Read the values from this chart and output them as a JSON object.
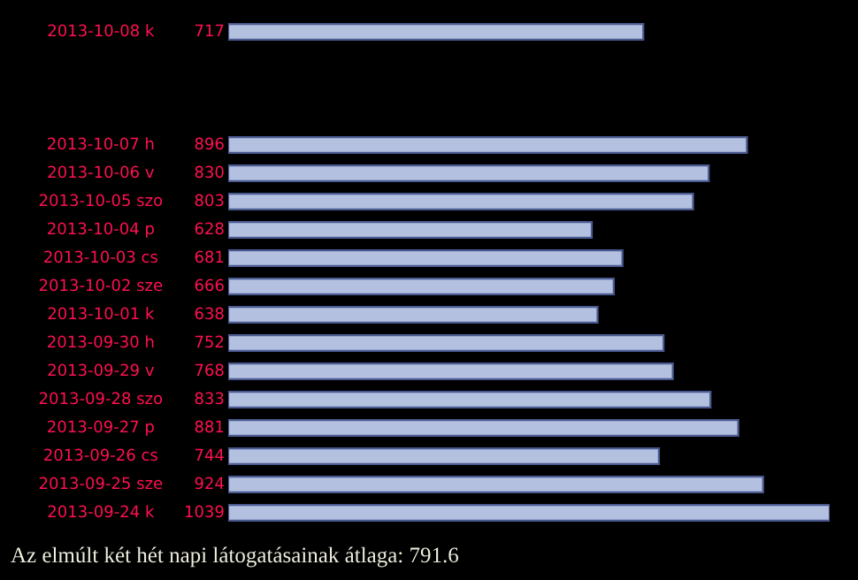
{
  "chart_data": {
    "type": "bar",
    "orientation": "horizontal",
    "data_labels": true,
    "categories": [
      "2013-10-08 k",
      null,
      null,
      null,
      "2013-10-07 h",
      "2013-10-06 v",
      "2013-10-05 szo",
      "2013-10-04 p",
      "2013-10-03 cs",
      "2013-10-02 sze",
      "2013-10-01 k",
      "2013-09-30 h",
      "2013-09-29 v",
      "2013-09-28 szo",
      "2013-09-27 p",
      "2013-09-26 cs",
      "2013-09-25 sze",
      "2013-09-24 k"
    ],
    "values": [
      717,
      null,
      null,
      null,
      896,
      830,
      803,
      628,
      681,
      666,
      638,
      752,
      768,
      833,
      881,
      744,
      924,
      1039
    ],
    "color": "#b4c0e0",
    "annotations": [
      "Az elmúlt két hét napi látogatásainak átlaga: 791.6"
    ]
  }
}
